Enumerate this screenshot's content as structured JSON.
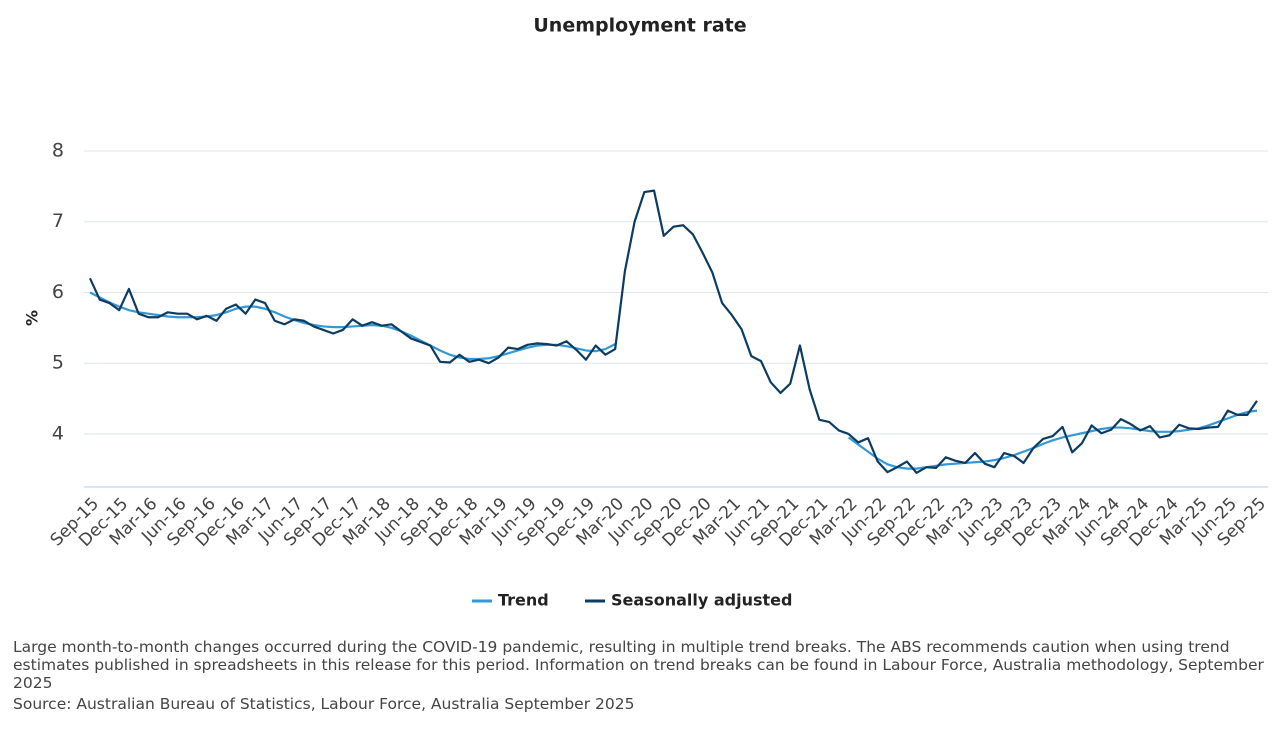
{
  "chart_data": {
    "type": "line",
    "title": "Unemployment rate",
    "y_label": "%",
    "categories": [
      "Sep-15",
      null,
      null,
      "Dec-15",
      null,
      null,
      "Mar-16",
      null,
      null,
      "Jun-16",
      null,
      null,
      "Sep-16",
      null,
      null,
      "Dec-16",
      null,
      null,
      "Mar-17",
      null,
      null,
      "Jun-17",
      null,
      null,
      "Sep-17",
      null,
      null,
      "Dec-17",
      null,
      null,
      "Mar-18",
      null,
      null,
      "Jun-18",
      null,
      null,
      "Sep-18",
      null,
      null,
      "Dec-18",
      null,
      null,
      "Mar-19",
      null,
      null,
      "Jun-19",
      null,
      null,
      "Sep-19",
      null,
      null,
      "Dec-19",
      null,
      null,
      "Mar-20",
      null,
      null,
      "Jun-20",
      null,
      null,
      "Sep-20",
      null,
      null,
      "Dec-20",
      null,
      null,
      "Mar-21",
      null,
      null,
      "Jun-21",
      null,
      null,
      "Sep-21",
      null,
      null,
      "Dec-21",
      null,
      null,
      "Mar-22",
      null,
      null,
      "Jun-22",
      null,
      null,
      "Sep-22",
      null,
      null,
      "Dec-22",
      null,
      null,
      "Mar-23",
      null,
      null,
      "Jun-23",
      null,
      null,
      "Sep-23",
      null,
      null,
      "Dec-23",
      null,
      null,
      "Mar-24",
      null,
      null,
      "Jun-24",
      null,
      null,
      "Sep-24",
      null,
      null,
      "Dec-24",
      null,
      null,
      "Mar-25",
      null,
      null,
      "Jun-25",
      null,
      null,
      "Sep-25"
    ],
    "series": [
      {
        "name": "Trend",
        "color": "#3399d6",
        "values": [
          6.0,
          5.93,
          5.86,
          5.8,
          5.75,
          5.72,
          5.7,
          5.68,
          5.66,
          5.65,
          5.65,
          5.65,
          5.66,
          5.68,
          5.72,
          5.77,
          5.8,
          5.8,
          5.77,
          5.72,
          5.66,
          5.61,
          5.57,
          5.54,
          5.52,
          5.51,
          5.51,
          5.52,
          5.53,
          5.54,
          5.53,
          5.5,
          5.45,
          5.39,
          5.32,
          5.25,
          5.18,
          5.12,
          5.08,
          5.06,
          5.06,
          5.07,
          5.1,
          5.14,
          5.18,
          5.22,
          5.25,
          5.26,
          5.26,
          5.24,
          5.21,
          5.18,
          5.17,
          5.2,
          5.27,
          null,
          null,
          null,
          null,
          null,
          null,
          null,
          null,
          null,
          null,
          null,
          null,
          null,
          null,
          null,
          null,
          null,
          null,
          null,
          null,
          null,
          null,
          null,
          3.95,
          3.85,
          3.75,
          3.65,
          3.57,
          3.53,
          3.51,
          3.51,
          3.53,
          3.55,
          3.57,
          3.58,
          3.59,
          3.6,
          3.61,
          3.63,
          3.66,
          3.7,
          3.75,
          3.8,
          3.86,
          3.91,
          3.95,
          3.98,
          4.01,
          4.04,
          4.07,
          4.09,
          4.09,
          4.08,
          4.06,
          4.04,
          4.03,
          4.03,
          4.04,
          4.06,
          4.08,
          4.12,
          4.17,
          4.22,
          4.27,
          4.31,
          4.33
        ]
      },
      {
        "name": "Seasonally adjusted",
        "color": "#0c3c62",
        "values": [
          6.2,
          5.9,
          5.85,
          5.75,
          6.05,
          5.7,
          5.65,
          5.65,
          5.72,
          5.7,
          5.7,
          5.62,
          5.67,
          5.6,
          5.77,
          5.83,
          5.7,
          5.9,
          5.85,
          5.6,
          5.55,
          5.62,
          5.6,
          5.52,
          5.47,
          5.42,
          5.47,
          5.62,
          5.53,
          5.58,
          5.53,
          5.55,
          5.45,
          5.35,
          5.3,
          5.25,
          5.02,
          5.01,
          5.12,
          5.02,
          5.05,
          5.0,
          5.08,
          5.22,
          5.2,
          5.26,
          5.28,
          5.27,
          5.25,
          5.31,
          5.19,
          5.05,
          5.25,
          5.12,
          5.2,
          6.3,
          7.0,
          7.42,
          7.44,
          6.8,
          6.93,
          6.95,
          6.82,
          6.56,
          6.28,
          5.85,
          5.68,
          5.48,
          5.1,
          5.03,
          4.73,
          4.58,
          4.71,
          5.25,
          4.63,
          4.2,
          4.17,
          4.05,
          4.0,
          3.88,
          3.94,
          3.61,
          3.46,
          3.53,
          3.61,
          3.45,
          3.53,
          3.52,
          3.67,
          3.62,
          3.59,
          3.73,
          3.58,
          3.53,
          3.73,
          3.69,
          3.59,
          3.8,
          3.93,
          3.97,
          4.1,
          3.74,
          3.87,
          4.12,
          4.01,
          4.06,
          4.21,
          4.14,
          4.05,
          4.11,
          3.95,
          3.98,
          4.13,
          4.08,
          4.07,
          4.09,
          4.1,
          4.33,
          4.27,
          4.27,
          4.47
        ]
      }
    ],
    "ylim": [
      3.25,
      8
    ],
    "yticks": [
      4,
      5,
      6,
      7,
      8
    ],
    "grid": true,
    "note": "Large month-to-month changes occurred during the COVID-19 pandemic, resulting in multiple trend breaks. The ABS recommends caution when using trend estimates published in spreadsheets in this release for this period. Information on trend breaks can be found in Labour Force, Australia methodology, September 2025",
    "source": "Source: Australian Bureau of Statistics, Labour Force, Australia September 2025"
  }
}
